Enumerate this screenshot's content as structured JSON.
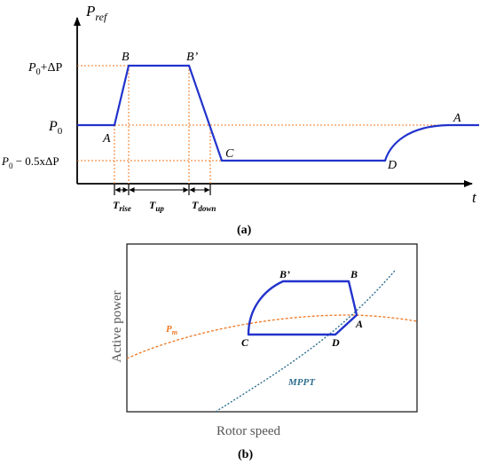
{
  "colors": {
    "axis": "#000000",
    "curve": "#2233cc",
    "guide": "#ee7722",
    "pm": "#ee7722",
    "mppt": "#2e6e8e",
    "border": "#222222"
  },
  "panel_a": {
    "caption": "(a)",
    "y_axis_label_main": "P",
    "y_axis_label_sub": "ref",
    "x_axis_label": "t",
    "y_levels": {
      "upper": {
        "base": "P",
        "sub": "0",
        "rest": "+ΔP"
      },
      "mid": {
        "base": "P",
        "sub": "0",
        "rest": ""
      },
      "lower": {
        "base": "P",
        "sub": "0",
        "rest": " − 0.5xΔP"
      }
    },
    "points": {
      "A_start": "A",
      "B": "B",
      "B_prime": "B’",
      "C": "C",
      "D": "D",
      "A_end": "A"
    },
    "intervals": {
      "rise": {
        "base": "T",
        "sub": "rise"
      },
      "up": {
        "base": "T",
        "sub": "up"
      },
      "down": {
        "base": "T",
        "sub": "down"
      }
    }
  },
  "panel_b": {
    "caption": "(b)",
    "x_axis_label": "Rotor speed",
    "y_axis_label": "Active power",
    "curves": {
      "pm_base": "P",
      "pm_sub": "m",
      "mppt": "MPPT"
    },
    "points": {
      "B_prime": "B’",
      "B": "B",
      "A": "A",
      "C": "C",
      "D": "D"
    }
  }
}
